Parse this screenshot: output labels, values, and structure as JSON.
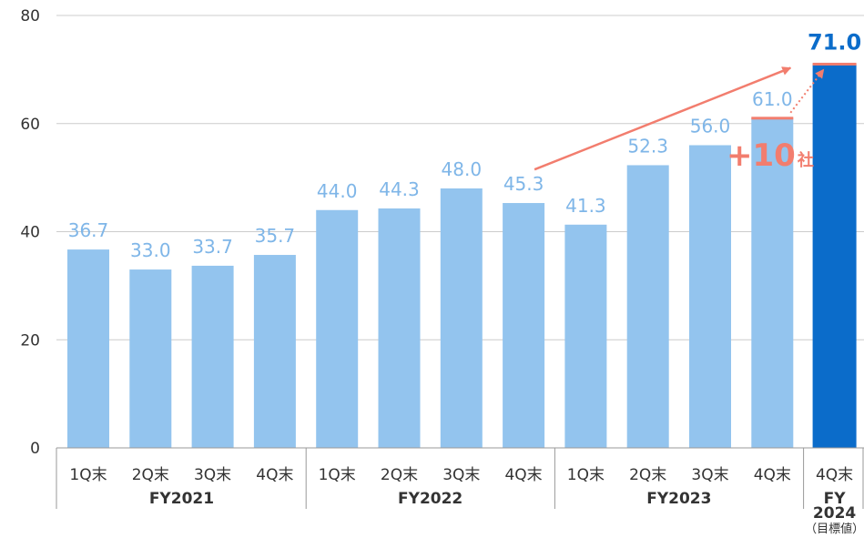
{
  "chart_data": {
    "type": "bar",
    "ylim": [
      0,
      80
    ],
    "yticks": [
      0,
      20,
      40,
      60,
      80
    ],
    "grid": true,
    "categories": [
      "1Q末",
      "2Q末",
      "3Q末",
      "4Q末",
      "1Q末",
      "2Q末",
      "3Q末",
      "4Q末",
      "1Q末",
      "2Q末",
      "3Q末",
      "4Q末",
      "4Q末"
    ],
    "values": [
      36.7,
      33.0,
      33.7,
      35.7,
      44.0,
      44.3,
      48.0,
      45.3,
      41.3,
      52.3,
      56.0,
      61.0,
      71.0
    ],
    "value_labels": [
      "36.7",
      "33.0",
      "33.7",
      "35.7",
      "44.0",
      "44.3",
      "48.0",
      "45.3",
      "41.3",
      "52.3",
      "56.0",
      "61.0",
      "71.0"
    ],
    "groups": [
      {
        "label": "FY2021",
        "start": 0,
        "end": 3
      },
      {
        "label": "FY2022",
        "start": 4,
        "end": 7
      },
      {
        "label": "FY2023",
        "start": 8,
        "end": 11
      },
      {
        "label_lines": [
          "FY",
          "2024"
        ],
        "note": "（目標値）",
        "start": 12,
        "end": 12
      }
    ],
    "target_index": 12,
    "annotation": {
      "number": "+10",
      "unit": "社"
    },
    "colors": {
      "bar": "#93c4ee",
      "value_label": "#7fb6e8",
      "target_bar": "#0b6cca",
      "target_label": "#0b6cca",
      "accent": "#f27d6e",
      "grid": "#cccccc"
    }
  }
}
